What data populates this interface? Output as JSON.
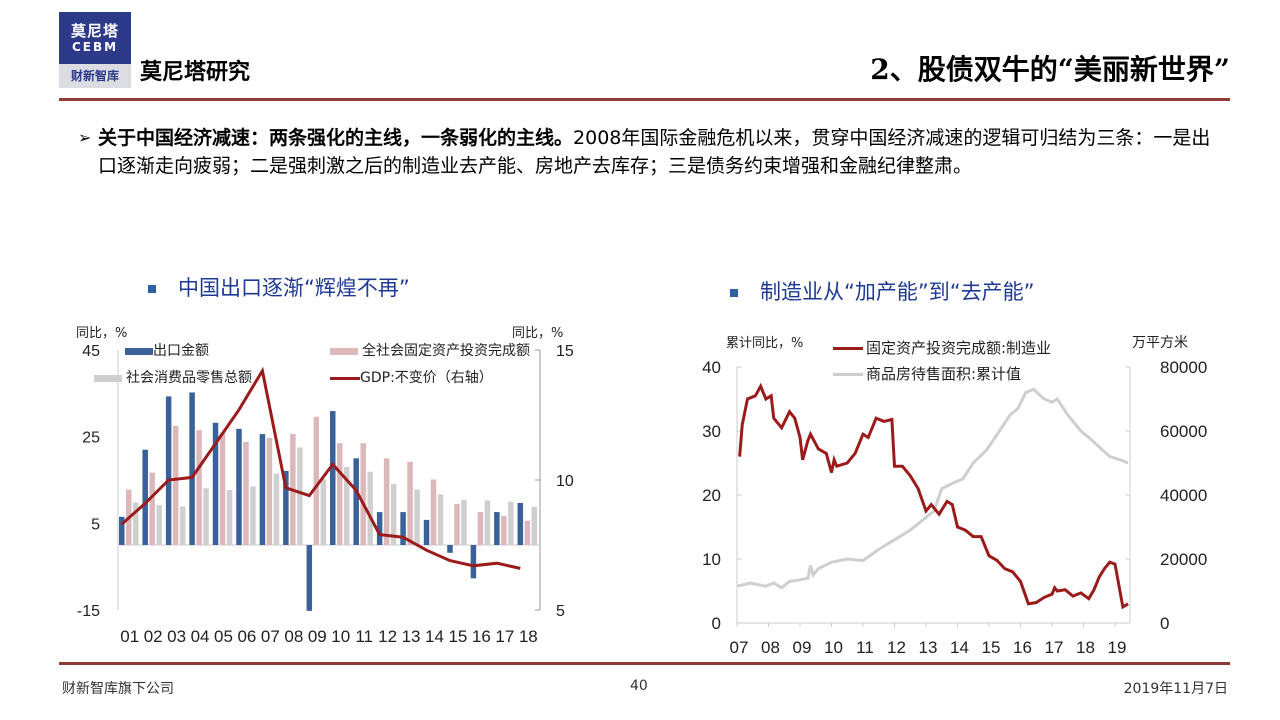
{
  "header": {
    "logo_line1": "莫尼塔",
    "logo_line2": "CEBM",
    "logo_line3": "财新智库",
    "brand": "莫尼塔研究",
    "title": "2、股债双牛的“美丽新世界”"
  },
  "body": {
    "bold": "关于中国经济减速：两条强化的主线，一条弱化的主线。",
    "text": "2008年国际金融危机以来，贯穿中国经济减速的逻辑可归结为三条：一是出口逐渐走向疲弱；二是强刺激之后的制造业去产能、房地产去库存；三是债务约束增强和金融纪律整肃。"
  },
  "footer": {
    "company": "财新智库旗下公司",
    "page": "40",
    "date": "2019年11月7日"
  },
  "colors": {
    "accent": "#8e3b38",
    "export": "#3a6199",
    "investment": "#dcb8bb",
    "retail": "#cfcfcf",
    "gdp": "#9b1b1b",
    "mfg": "#9b1b1b",
    "housing": "#cfcfcf"
  },
  "chart_data": [
    {
      "type": "bar",
      "subtitle": "中国出口逐渐“辉煌不再”",
      "ylabel_left": "同比，%",
      "ylabel_right": "同比，%",
      "categories": [
        "01",
        "02",
        "03",
        "04",
        "05",
        "06",
        "07",
        "08",
        "09",
        "10",
        "11",
        "12",
        "13",
        "14",
        "15",
        "16",
        "17",
        "18"
      ],
      "ylim_left": [
        -15,
        45
      ],
      "yticks_left": [
        45,
        25,
        5,
        -15
      ],
      "ylim_right": [
        5,
        15
      ],
      "yticks_right": [
        15,
        10,
        5
      ],
      "legend_position": "top",
      "series": [
        {
          "name": "出口金额",
          "axis": "left",
          "kind": "bar",
          "values": [
            6.5,
            22,
            34.3,
            35.2,
            28.2,
            26.8,
            25.6,
            17.1,
            -15.2,
            30.9,
            20,
            7.6,
            7.6,
            5.8,
            -1.8,
            -7.7,
            7.6,
            9.7
          ]
        },
        {
          "name": "全社会固定资产投资完成额",
          "axis": "left",
          "kind": "bar",
          "values": [
            12.8,
            16.7,
            27.5,
            26.5,
            25.8,
            23.8,
            24.7,
            25.6,
            29.6,
            23.5,
            23.5,
            20,
            19.2,
            15.1,
            9.5,
            7.6,
            6.7,
            5.6
          ]
        },
        {
          "name": "社会消费品零售总额",
          "axis": "left",
          "kind": "bar",
          "values": [
            9.8,
            9.2,
            8.9,
            13.1,
            12.7,
            13.5,
            16.5,
            22.5,
            15.2,
            18,
            16.9,
            14.1,
            12.8,
            11.7,
            10.4,
            10.3,
            10,
            8.8
          ]
        },
        {
          "name": "GDP:不变价（右轴）",
          "axis": "right",
          "kind": "line",
          "values": [
            8.3,
            9.1,
            10,
            10.1,
            11.4,
            12.7,
            14.2,
            9.7,
            9.4,
            10.6,
            9.6,
            7.9,
            7.8,
            7.3,
            6.9,
            6.7,
            6.8,
            6.6
          ]
        }
      ]
    },
    {
      "type": "line",
      "subtitle": "制造业从“加产能”到“去产能”",
      "ylabel_left": "累计同比，%",
      "ylabel_right": "万平方米",
      "xticks": [
        "07",
        "08",
        "09",
        "10",
        "11",
        "12",
        "13",
        "14",
        "15",
        "16",
        "17",
        "18",
        "19"
      ],
      "ylim_left": [
        0,
        40
      ],
      "yticks_left": [
        40,
        30,
        20,
        10,
        0
      ],
      "ylim_right": [
        0,
        80000
      ],
      "yticks_right": [
        80000,
        60000,
        40000,
        20000,
        0
      ],
      "legend_position": "top",
      "series": [
        {
          "name": "固定资产投资完成额:制造业",
          "axis": "left",
          "points": [
            [
              "2007-02",
              26
            ],
            [
              "2007-03",
              31
            ],
            [
              "2007-05",
              35
            ],
            [
              "2007-08",
              35.5
            ],
            [
              "2007-10",
              37
            ],
            [
              "2007-12",
              35
            ],
            [
              "2008-02",
              35.5
            ],
            [
              "2008-03",
              32
            ],
            [
              "2008-06",
              30.5
            ],
            [
              "2008-09",
              33
            ],
            [
              "2008-11",
              32
            ],
            [
              "2009-01",
              29
            ],
            [
              "2009-02",
              25.5
            ],
            [
              "2009-04",
              28.5
            ],
            [
              "2009-05",
              29.5
            ],
            [
              "2009-08",
              27.2
            ],
            [
              "2009-11",
              26.5
            ],
            [
              "2010-01",
              23.5
            ],
            [
              "2010-02",
              25.5
            ],
            [
              "2010-03",
              24.5
            ],
            [
              "2010-07",
              25
            ],
            [
              "2010-10",
              26.5
            ],
            [
              "2011-01",
              29.5
            ],
            [
              "2011-03",
              29
            ],
            [
              "2011-06",
              32
            ],
            [
              "2011-09",
              31.5
            ],
            [
              "2011-12",
              31.8
            ],
            [
              "2012-01",
              24.5
            ],
            [
              "2012-04",
              24.5
            ],
            [
              "2012-07",
              23
            ],
            [
              "2012-10",
              21
            ],
            [
              "2013-01",
              17.5
            ],
            [
              "2013-03",
              18.5
            ],
            [
              "2013-06",
              17
            ],
            [
              "2013-09",
              19
            ],
            [
              "2013-11",
              18.5
            ],
            [
              "2014-01",
              15
            ],
            [
              "2014-04",
              14.5
            ],
            [
              "2014-07",
              13.5
            ],
            [
              "2014-10",
              13.5
            ],
            [
              "2015-01",
              10.5
            ],
            [
              "2015-04",
              9.8
            ],
            [
              "2015-07",
              8.5
            ],
            [
              "2015-10",
              8
            ],
            [
              "2016-01",
              6.5
            ],
            [
              "2016-04",
              3
            ],
            [
              "2016-07",
              3.2
            ],
            [
              "2016-10",
              4
            ],
            [
              "2017-01",
              4.5
            ],
            [
              "2017-02",
              5.5
            ],
            [
              "2017-03",
              5
            ],
            [
              "2017-06",
              5.2
            ],
            [
              "2017-09",
              4.2
            ],
            [
              "2017-12",
              4.7
            ],
            [
              "2018-03",
              3.8
            ],
            [
              "2018-05",
              5.2
            ],
            [
              "2018-07",
              7.2
            ],
            [
              "2018-09",
              8.5
            ],
            [
              "2018-11",
              9.5
            ],
            [
              "2019-01",
              9.2
            ],
            [
              "2019-04",
              2.5
            ],
            [
              "2019-06",
              3
            ]
          ]
        },
        {
          "name": "商品房待售面积:累计值",
          "axis": "right",
          "points": [
            [
              "2007-01",
              11500
            ],
            [
              "2007-06",
              12500
            ],
            [
              "2007-12",
              11500
            ],
            [
              "2008-03",
              12500
            ],
            [
              "2008-06",
              11000
            ],
            [
              "2008-09",
              13000
            ],
            [
              "2009-01",
              13500
            ],
            [
              "2009-04",
              14000
            ],
            [
              "2009-05",
              18000
            ],
            [
              "2009-06",
              15000
            ],
            [
              "2009-08",
              17000
            ],
            [
              "2010-01",
              19000
            ],
            [
              "2010-07",
              20000
            ],
            [
              "2011-01",
              19500
            ],
            [
              "2011-07",
              23000
            ],
            [
              "2012-01",
              26000
            ],
            [
              "2012-07",
              29000
            ],
            [
              "2012-10",
              31000
            ],
            [
              "2013-01",
              33000
            ],
            [
              "2013-04",
              35000
            ],
            [
              "2013-07",
              42000
            ],
            [
              "2013-12",
              44000
            ],
            [
              "2014-03",
              45000
            ],
            [
              "2014-07",
              50000
            ],
            [
              "2014-12",
              54000
            ],
            [
              "2015-05",
              60000
            ],
            [
              "2015-09",
              65000
            ],
            [
              "2015-12",
              67000
            ],
            [
              "2016-03",
              72000
            ],
            [
              "2016-06",
              73000
            ],
            [
              "2016-10",
              70000
            ],
            [
              "2017-01",
              69000
            ],
            [
              "2017-03",
              70000
            ],
            [
              "2017-07",
              65000
            ],
            [
              "2017-12",
              60000
            ],
            [
              "2018-03",
              58000
            ],
            [
              "2018-07",
              55000
            ],
            [
              "2018-11",
              52000
            ],
            [
              "2019-03",
              51000
            ],
            [
              "2019-06",
              50000
            ]
          ]
        }
      ]
    }
  ]
}
